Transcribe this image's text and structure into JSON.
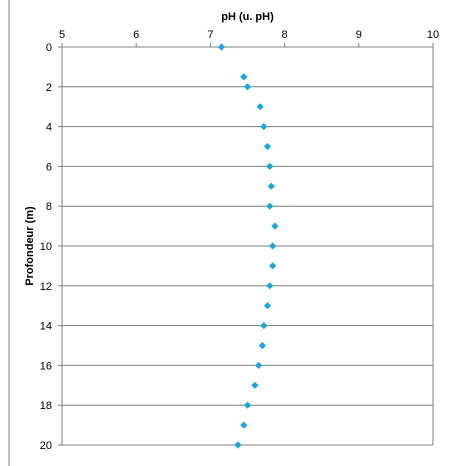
{
  "chart_data": {
    "type": "scatter",
    "xlabel": "pH (u. pH)",
    "ylabel": "Profondeur (m)",
    "xlim": [
      5,
      10
    ],
    "ylim": [
      0,
      20
    ],
    "x_axis_position": "top",
    "y_axis_inverted": true,
    "x_ticks": [
      5,
      6,
      7,
      8,
      9,
      10
    ],
    "y_ticks": [
      0,
      2,
      4,
      6,
      8,
      10,
      12,
      14,
      16,
      18,
      20
    ],
    "grid": "horizontal",
    "marker": "diamond",
    "marker_color": "#1AA6E0",
    "series": [
      {
        "x": [
          7.15,
          7.45,
          7.5,
          7.67,
          7.72,
          7.77,
          7.8,
          7.82,
          7.8,
          7.87,
          7.84,
          7.84,
          7.8,
          7.77,
          7.72,
          7.7,
          7.65,
          7.6,
          7.5,
          7.45,
          7.37
        ],
        "y": [
          0,
          1.5,
          2,
          3,
          4,
          5,
          6,
          7,
          8,
          9,
          10,
          11,
          12,
          13,
          14,
          15,
          16,
          17,
          18,
          19,
          20
        ]
      }
    ]
  }
}
